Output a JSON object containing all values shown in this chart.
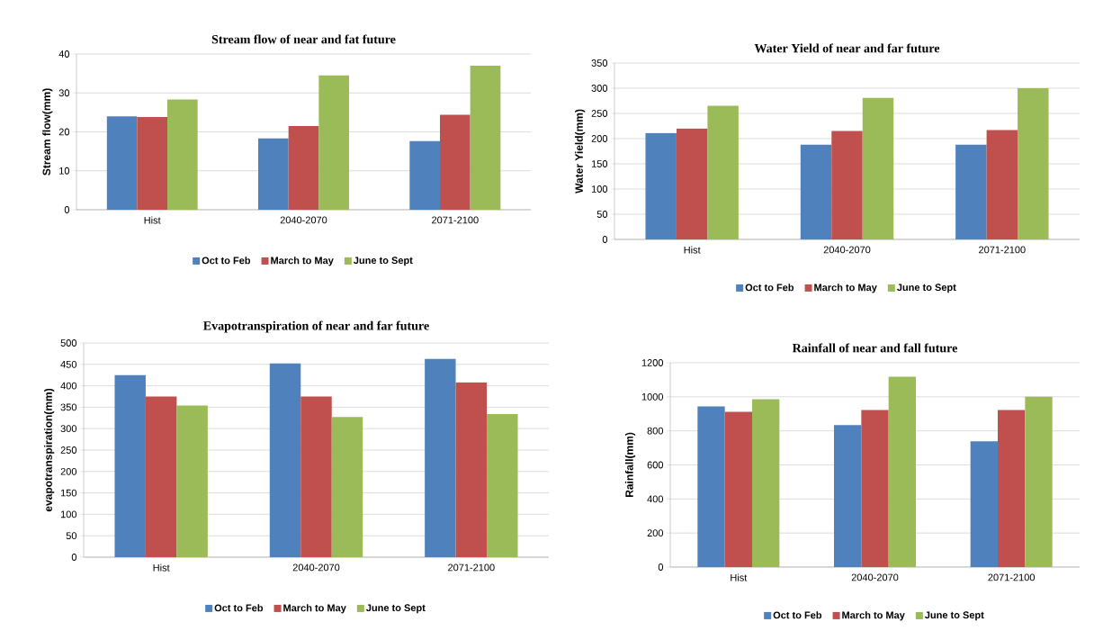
{
  "chart_data": [
    {
      "type": "bar",
      "title": "Stream flow of near and fat future",
      "ylabel": "Stream flow(mm)",
      "categories": [
        "Hist",
        "2040-2070",
        "2071-2100"
      ],
      "series": [
        {
          "name": "Oct to Feb",
          "color": "#4f81bd",
          "values": [
            24.0,
            18.3,
            17.6
          ]
        },
        {
          "name": "March to May",
          "color": "#c0504d",
          "values": [
            23.8,
            21.5,
            24.4
          ]
        },
        {
          "name": "June to Sept",
          "color": "#9bbb59",
          "values": [
            28.3,
            34.5,
            37.0
          ]
        }
      ],
      "ylim": [
        0,
        40
      ],
      "yticks": [
        0,
        10,
        20,
        30,
        40
      ],
      "grid": "y",
      "legend": "bottom"
    },
    {
      "type": "bar",
      "title": "Water Yield of near and far future",
      "ylabel": "Water Yield(mm)",
      "categories": [
        "Hist",
        "2040-2070",
        "2071-2100"
      ],
      "series": [
        {
          "name": "Oct to Feb",
          "color": "#4f81bd",
          "values": [
            211,
            188,
            188
          ]
        },
        {
          "name": "March to May",
          "color": "#c0504d",
          "values": [
            220,
            215,
            217
          ]
        },
        {
          "name": "June to Sept",
          "color": "#9bbb59",
          "values": [
            265,
            281,
            300
          ]
        }
      ],
      "ylim": [
        0,
        350
      ],
      "yticks": [
        0,
        50,
        100,
        150,
        200,
        250,
        300,
        350
      ],
      "grid": "y",
      "legend": "bottom"
    },
    {
      "type": "bar",
      "title": "Evapotranspiration of near and far future",
      "ylabel": "evapotranspiration(mm)",
      "categories": [
        "Hist",
        "2040-2070",
        "2071-2100"
      ],
      "series": [
        {
          "name": "Oct to Feb",
          "color": "#4f81bd",
          "values": [
            425,
            452,
            463
          ]
        },
        {
          "name": "March to May",
          "color": "#c0504d",
          "values": [
            375,
            375,
            408
          ]
        },
        {
          "name": "June to Sept",
          "color": "#9bbb59",
          "values": [
            354,
            327,
            334
          ]
        }
      ],
      "ylim": [
        0,
        500
      ],
      "yticks": [
        0,
        50,
        100,
        150,
        200,
        250,
        300,
        350,
        400,
        450,
        500
      ],
      "grid": "y",
      "legend": "bottom"
    },
    {
      "type": "bar",
      "title": "Rainfall of near and fall future",
      "ylabel": "Rainfall(mm)",
      "categories": [
        "Hist",
        "2040-2070",
        "2071-2100"
      ],
      "series": [
        {
          "name": "Oct to Feb",
          "color": "#4f81bd",
          "values": [
            944,
            834,
            739
          ]
        },
        {
          "name": "March to May",
          "color": "#c0504d",
          "values": [
            912,
            923,
            923
          ]
        },
        {
          "name": "June to Sept",
          "color": "#9bbb59",
          "values": [
            986,
            1118,
            1000
          ]
        }
      ],
      "ylim": [
        0,
        1200
      ],
      "yticks": [
        0,
        200,
        400,
        600,
        800,
        1000,
        1200
      ],
      "grid": "y",
      "legend": "bottom"
    }
  ]
}
